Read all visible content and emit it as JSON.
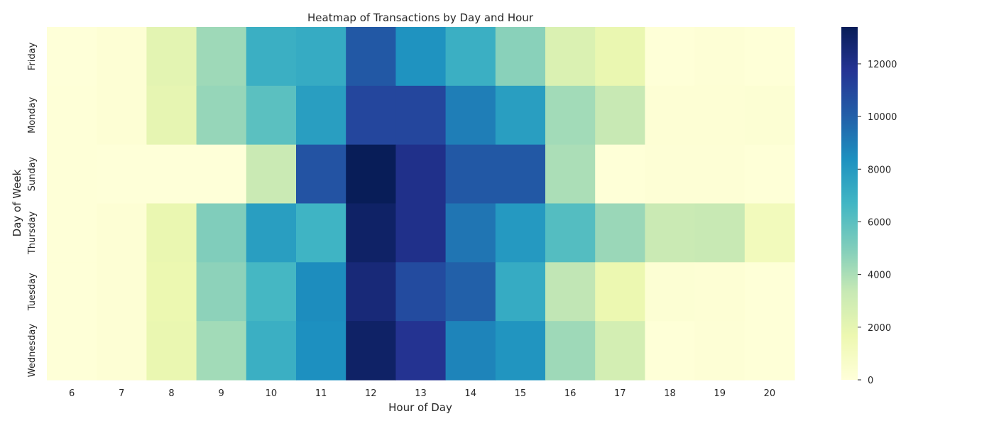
{
  "chart_data": {
    "type": "heatmap",
    "title": "Heatmap of Transactions by Day and Hour",
    "xlabel": "Hour of Day",
    "ylabel": "Day of Week",
    "x": [
      "6",
      "7",
      "8",
      "9",
      "10",
      "11",
      "12",
      "13",
      "14",
      "15",
      "16",
      "17",
      "18",
      "19",
      "20"
    ],
    "y": [
      "Friday",
      "Monday",
      "Sunday",
      "Thursday",
      "Tuesday",
      "Wednesday"
    ],
    "values": [
      [
        60,
        200,
        2100,
        4300,
        7000,
        7200,
        10300,
        8300,
        7000,
        4800,
        2500,
        1800,
        100,
        150,
        100
      ],
      [
        100,
        200,
        2000,
        4500,
        6000,
        7800,
        11000,
        11000,
        9000,
        7800,
        4200,
        3300,
        200,
        200,
        250
      ],
      [
        100,
        60,
        60,
        60,
        3200,
        10500,
        13400,
        12000,
        10300,
        10300,
        4000,
        100,
        150,
        150,
        100
      ],
      [
        100,
        200,
        1800,
        5000,
        7800,
        6800,
        13000,
        12000,
        9300,
        8000,
        6200,
        4400,
        3200,
        3300,
        1200
      ],
      [
        100,
        200,
        1700,
        4700,
        6600,
        8500,
        12500,
        10800,
        10000,
        7200,
        3500,
        1700,
        250,
        200,
        100
      ],
      [
        100,
        200,
        1800,
        4200,
        7000,
        8400,
        13000,
        11800,
        8800,
        8200,
        4300,
        2800,
        100,
        150,
        100
      ]
    ],
    "colorbar": {
      "range": [
        0,
        13400
      ],
      "ticks": [
        0,
        2000,
        4000,
        6000,
        8000,
        10000,
        12000
      ],
      "tick_labels": [
        "0",
        "2000",
        "4000",
        "6000",
        "8000",
        "10000",
        "12000"
      ],
      "colormap": "YlGnBu",
      "stops": [
        "#ffffd9",
        "#edf8b1",
        "#c7e9b4",
        "#7fcdbb",
        "#41b6c4",
        "#1d91c0",
        "#225ea8",
        "#253494",
        "#081d58"
      ]
    },
    "grid": false
  }
}
